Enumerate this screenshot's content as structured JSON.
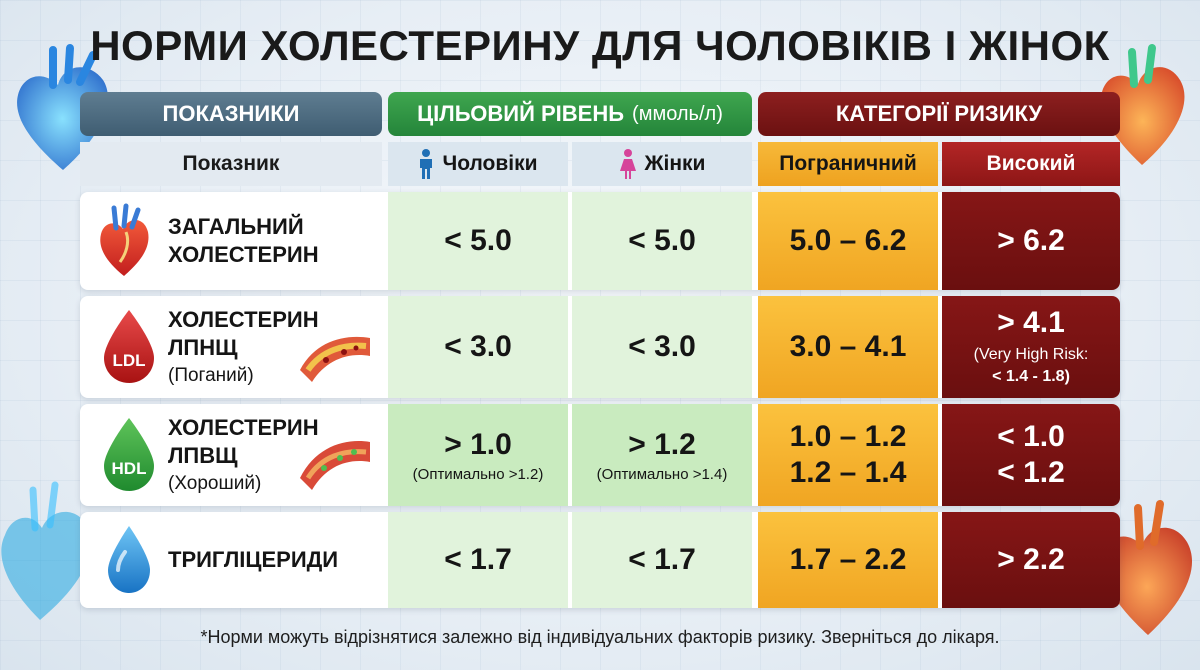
{
  "title": "НОРМИ ХОЛЕСТЕРИНУ ДЛЯ ЧОЛОВІКІВ І ЖІНОК",
  "headers": {
    "indicators": "ПОКАЗНИКИ",
    "target": "ЦІЛЬОВИЙ РІВЕНЬ",
    "target_unit": "(ммоль/л)",
    "risk": "КАТЕГОРІЇ РИЗИКУ"
  },
  "subheaders": {
    "indicator": "Показник",
    "men": "Чоловіки",
    "women": "Жінки",
    "borderline": "Пограничний",
    "high": "Високий"
  },
  "icons": {
    "heart": "heart-icon",
    "ldl_drop": "ldl-drop-icon",
    "hdl_drop": "hdl-drop-icon",
    "water_drop": "water-drop-icon",
    "artery": "artery-icon",
    "male": "male-icon",
    "female": "female-icon"
  },
  "colors": {
    "target_green": "#24853a",
    "borderline_orange": "#f0a522",
    "high_red": "#6a0f0f",
    "indicator_slate": "#3f5d72"
  },
  "rows": [
    {
      "name_line1": "ЗАГАЛЬНИЙ",
      "name_line2": "ХОЛЕСТЕРИН",
      "men": "< 5.0",
      "women": "< 5.0",
      "borderline": "5.0 – 6.2",
      "high": "> 6.2"
    },
    {
      "badge": "LDL",
      "name_line1": "ХОЛЕСТЕРИН",
      "name_line2": "ЛПНЩ",
      "name_sub": "(Поганий)",
      "men": "< 3.0",
      "women": "< 3.0",
      "borderline": "3.0 – 4.1",
      "high": "> 4.1",
      "high_note_line1": "(Very High Risk:",
      "high_note_line2": "< 1.4 - 1.8)"
    },
    {
      "badge": "HDL",
      "name_line1": "ХОЛЕСТЕРИН",
      "name_line2": "ЛПВЩ",
      "name_sub": "(Хороший)",
      "men": "> 1.0",
      "men_note": "(Оптимально >1.2)",
      "women": "> 1.2",
      "women_note": "(Оптимально >1.4)",
      "borderline_line1": "1.0 – 1.2",
      "borderline_line2": "1.2 – 1.4",
      "high_line1": "< 1.0",
      "high_line2": "< 1.2"
    },
    {
      "name_line1": "ТРИГЛІЦЕРИДИ",
      "men": "< 1.7",
      "women": "< 1.7",
      "borderline": "1.7 – 2.2",
      "high": "> 2.2"
    }
  ],
  "footnote": "*Норми можуть відрізнятися залежно від індивідуальних факторів ризику. Зверніться до лікаря."
}
